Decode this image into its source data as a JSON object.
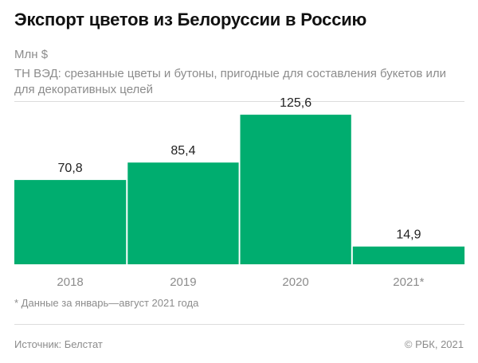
{
  "header": {
    "title": "Экспорт цветов из Белоруссии в Россию",
    "unit": "Млн $",
    "subtitle": "ТН ВЭД: срезанные цветы и бутоны, пригодные для составления букетов или для декоративных целей"
  },
  "footer": {
    "footnote": "* Данные за январь—август 2021 года",
    "source": "Источник: Белстат",
    "copyright": "© РБК, 2021"
  },
  "colors": {
    "bar": "#00ad6f",
    "axis_text": "#8c8c8c",
    "label_text": "#222222"
  },
  "chart_data": {
    "type": "bar",
    "categories": [
      "2018",
      "2019",
      "2020",
      "2021*"
    ],
    "values": [
      70.8,
      85.4,
      125.6,
      14.9
    ],
    "value_labels": [
      "70,8",
      "85,4",
      "125,6",
      "14,9"
    ],
    "ylim": [
      0,
      135
    ],
    "grid": false,
    "legend": "none"
  }
}
